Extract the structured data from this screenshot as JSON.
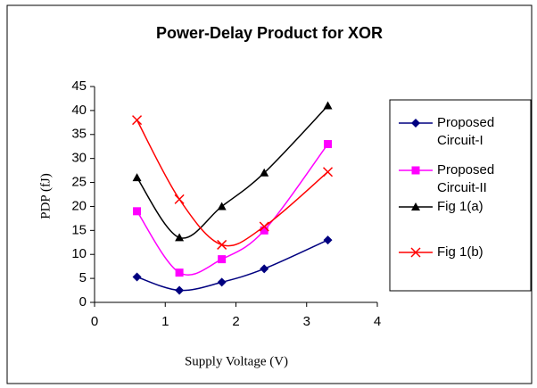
{
  "chart_data": {
    "type": "line",
    "title": "Power-Delay Product for XOR",
    "x_label": "Supply Voltage (V)",
    "y_label": "PDP (fJ)",
    "x": [
      0.6,
      1.2,
      1.8,
      2.4,
      3.3
    ],
    "series": [
      {
        "name": "Proposed Circuit-I",
        "color": "#000080",
        "marker": "diamond",
        "values": [
          5.3,
          2.5,
          4.2,
          7,
          13
        ]
      },
      {
        "name": "Proposed Circuit-II",
        "color": "#ff00ff",
        "marker": "square",
        "values": [
          19,
          6.2,
          9,
          15,
          33
        ]
      },
      {
        "name": "Fig 1(a)",
        "color": "#000000",
        "marker": "triangle",
        "values": [
          26,
          13.5,
          20,
          27,
          41
        ]
      },
      {
        "name": "Fig 1(b)",
        "color": "#ff0000",
        "marker": "x",
        "values": [
          38,
          21.5,
          12,
          15.8,
          27.2
        ]
      }
    ],
    "xlim": [
      0,
      4
    ],
    "xticks": [
      0,
      1,
      2,
      3,
      4
    ],
    "ylim": [
      0,
      45
    ],
    "yticks": [
      0,
      5,
      10,
      15,
      20,
      25,
      30,
      35,
      40,
      45
    ],
    "smooth": true,
    "grid": false,
    "legend": "right"
  }
}
